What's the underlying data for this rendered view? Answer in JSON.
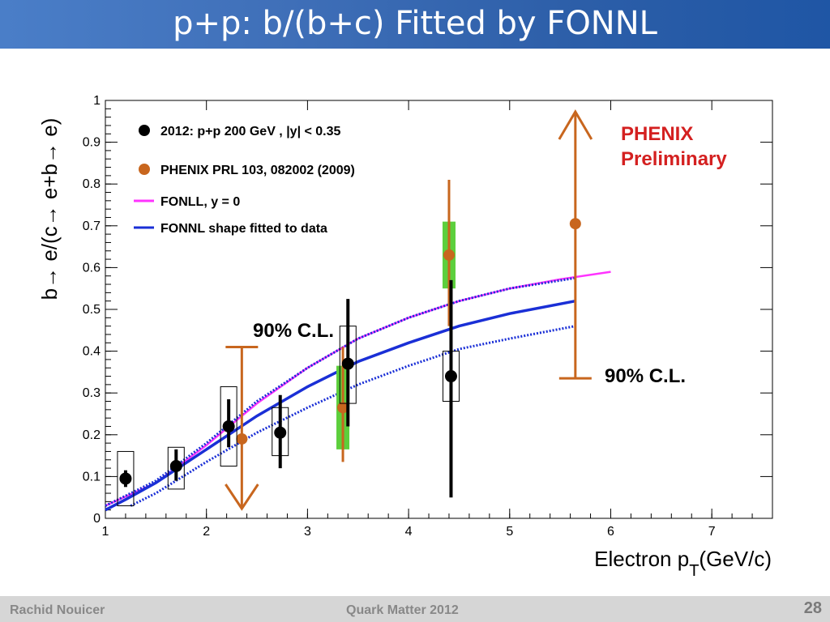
{
  "slide": {
    "title": "p+p: b/(b+c) Fitted by FONNL",
    "author": "Rachid Nouicer",
    "conference": "Quark Matter 2012",
    "page_number": "28",
    "title_bar_color": "#3f6fb8",
    "footer_color": "#d6d6d6"
  },
  "chart_data": {
    "type": "scatter",
    "xlabel": "Electron p",
    "xlabel_sub": "T",
    "xlabel_suffix": "(GeV/c)",
    "ylabel": "b→ e/(c→ e+b→ e)",
    "xlim": [
      1,
      7.6
    ],
    "ylim": [
      0,
      1
    ],
    "xticks": [
      "1",
      "2",
      "3",
      "4",
      "5",
      "6",
      "7"
    ],
    "yticks": [
      "0",
      "0.1",
      "0.2",
      "0.3",
      "0.4",
      "0.5",
      "0.6",
      "0.7",
      "0.8",
      "0.9",
      "1"
    ],
    "legend_position": "top-left",
    "legend": [
      {
        "label": "2012: p+p 200 GeV  , |y| < 0.35",
        "marker": "dot",
        "color": "#000000"
      },
      {
        "label": "PHENIX PRL 103, 082002 (2009)",
        "marker": "dot",
        "color": "#c8661e"
      },
      {
        "label": "FONLL, y = 0",
        "marker": "line",
        "color": "#ff33ff"
      },
      {
        "label": "FONNL shape fitted to data",
        "marker": "line",
        "color": "#1a2fd6"
      }
    ],
    "preliminary_label": [
      "PHENIX",
      "Preliminary"
    ],
    "preliminary_color": "#d42020",
    "cl_annotations": [
      "90% C.L.",
      "90% C.L."
    ],
    "series": [
      {
        "name": "2012: p+p 200 GeV  , |y| < 0.35",
        "color": "#000000",
        "points": [
          {
            "x": 1.2,
            "y": 0.095,
            "stat_lo": 0.075,
            "stat_hi": 0.115,
            "sys_lo": 0.03,
            "sys_hi": 0.16
          },
          {
            "x": 1.7,
            "y": 0.125,
            "stat_lo": 0.09,
            "stat_hi": 0.165,
            "sys_lo": 0.07,
            "sys_hi": 0.17
          },
          {
            "x": 2.22,
            "y": 0.22,
            "stat_lo": 0.17,
            "stat_hi": 0.285,
            "sys_lo": 0.125,
            "sys_hi": 0.315
          },
          {
            "x": 2.73,
            "y": 0.205,
            "stat_lo": 0.12,
            "stat_hi": 0.295,
            "sys_lo": 0.15,
            "sys_hi": 0.265
          },
          {
            "x": 3.4,
            "y": 0.37,
            "stat_lo": 0.22,
            "stat_hi": 0.525,
            "sys_lo": 0.275,
            "sys_hi": 0.46
          },
          {
            "x": 4.42,
            "y": 0.34,
            "stat_lo": 0.05,
            "stat_hi": 0.57,
            "sys_lo": 0.28,
            "sys_hi": 0.4
          }
        ]
      },
      {
        "name": "PHENIX PRL 103, 082002 (2009)",
        "color": "#c8661e",
        "sys_color": "#5ccf3c",
        "points": [
          {
            "x": 2.35,
            "y": 0.19,
            "upper_limit": 0.41,
            "limit_type": "down"
          },
          {
            "x": 3.35,
            "y": 0.265,
            "stat_lo": 0.135,
            "stat_hi": 0.41,
            "sys_lo": 0.165,
            "sys_hi": 0.365
          },
          {
            "x": 4.4,
            "y": 0.63,
            "stat_lo": 0.46,
            "stat_hi": 0.81,
            "sys_lo": 0.55,
            "sys_hi": 0.71
          },
          {
            "x": 5.65,
            "y": 0.705,
            "lower_limit": 0.335,
            "limit_type": "up"
          }
        ]
      },
      {
        "name": "FONLL, y = 0",
        "color": "#ff33ff",
        "x": [
          1.0,
          1.5,
          2.0,
          2.5,
          3.0,
          3.5,
          4.0,
          4.5,
          5.0,
          5.5,
          6.0
        ],
        "y": [
          0.03,
          0.085,
          0.175,
          0.275,
          0.36,
          0.43,
          0.48,
          0.52,
          0.55,
          0.572,
          0.59
        ]
      },
      {
        "name": "FONNL shape fitted to data",
        "color": "#1a2fd6",
        "x": [
          1.0,
          1.2,
          1.5,
          2.0,
          2.5,
          3.0,
          3.5,
          4.0,
          4.5,
          5.0,
          5.65
        ],
        "y": [
          0.02,
          0.045,
          0.085,
          0.165,
          0.245,
          0.315,
          0.375,
          0.42,
          0.46,
          0.49,
          0.52
        ],
        "band_upper": {
          "x": [
            1.0,
            1.5,
            2.0,
            2.5,
            3.0,
            3.5,
            4.0,
            4.5,
            5.0,
            5.65
          ],
          "y": [
            0.03,
            0.09,
            0.18,
            0.28,
            0.36,
            0.43,
            0.48,
            0.52,
            0.55,
            0.575
          ]
        },
        "band_lower": {
          "x": [
            1.25,
            1.5,
            2.0,
            2.5,
            3.0,
            3.5,
            4.0,
            4.5,
            5.0,
            5.65
          ],
          "y": [
            0.03,
            0.06,
            0.135,
            0.205,
            0.265,
            0.32,
            0.365,
            0.405,
            0.43,
            0.46
          ]
        }
      }
    ]
  }
}
